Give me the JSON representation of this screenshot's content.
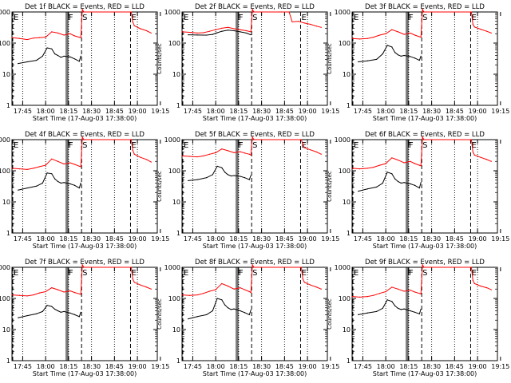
{
  "figure": {
    "panel_rows": 3,
    "panel_cols": 3,
    "colors": {
      "events": "#000000",
      "lld": "#ff0000",
      "axes": "#000000",
      "background": "#ffffff"
    }
  },
  "chart_data": {
    "type": "line",
    "yscale": "log",
    "ylim": [
      1,
      1000
    ],
    "xlim": [
      0,
      95
    ],
    "x_units": "minutes after 17:38:00",
    "y_tick_values": [
      1,
      10,
      100,
      1000
    ],
    "y_tick_labels": [
      "1",
      "10",
      "100",
      "1000"
    ],
    "x_tick_values": [
      7,
      22,
      37,
      52,
      67,
      82,
      97
    ],
    "x_tick_labels": [
      "17:45",
      "18:00",
      "18:15",
      "18:30",
      "18:45",
      "19:00",
      "19:15"
    ],
    "ylabel": "Counts/sec",
    "xlabel": "Start Time (17-Aug-03 17:38:00)",
    "minor_dotted_x": [
      7,
      22,
      37,
      52,
      67,
      82
    ],
    "markers": [
      {
        "label": "E",
        "x": 0.5,
        "style": "dashed"
      },
      {
        "label": "F",
        "x": 35.5,
        "style": "solid"
      },
      {
        "label": "F",
        "x": 36.5,
        "style": "solid"
      },
      {
        "label": "S",
        "x": 45.5,
        "style": "dashed"
      },
      {
        "label": "E",
        "x": 77.5,
        "style": "dashed"
      }
    ],
    "panels": [
      {
        "title": "Det 1f BLACK = Events, RED = LLD",
        "series": [
          {
            "name": "Events",
            "color": "#000000",
            "x": [
              4,
              10,
              16,
              20,
              23,
              26,
              28,
              30,
              32,
              34,
              38,
              41,
              44,
              45
            ],
            "y": [
              22,
              25,
              28,
              38,
              70,
              65,
              45,
              40,
              35,
              38,
              36,
              31,
              26,
              38
            ]
          },
          {
            "name": "LLD",
            "color": "#ff0000",
            "x": [
              0,
              5,
              10,
              14,
              18,
              22,
              26,
              30,
              34,
              38,
              41,
              44,
              45,
              46,
              47,
              48,
              78,
              79,
              80,
              84,
              88,
              91
            ],
            "y": [
              150,
              140,
              130,
              145,
              150,
              155,
              230,
              210,
              180,
              200,
              170,
              155,
              150,
              1200,
              1000,
              1000,
              1000,
              480,
              360,
              290,
              250,
              210
            ]
          }
        ]
      },
      {
        "title": "Det 2f BLACK = Events, RED = LLD",
        "series": [
          {
            "name": "Events",
            "color": "#000000",
            "x": [
              4,
              10,
              16,
              20,
              23,
              26,
              30,
              34,
              38,
              42,
              45
            ],
            "y": [
              185,
              182,
              180,
              190,
              215,
              240,
              260,
              250,
              230,
              210,
              185
            ]
          },
          {
            "name": "LLD",
            "color": "#ff0000",
            "x": [
              0,
              6,
              10,
              14,
              18,
              22,
              26,
              30,
              34,
              38,
              42,
              45,
              46,
              47,
              48,
              64,
              65,
              70,
              72,
              76,
              80,
              84,
              88,
              91
            ],
            "y": [
              230,
              220,
              210,
              215,
              240,
              270,
              300,
              320,
              290,
              270,
              250,
              230,
              1200,
              1000,
              1000,
              1000,
              1000,
              1000,
              480,
              500,
              440,
              400,
              350,
              320
            ]
          }
        ]
      },
      {
        "title": "Det 3f BLACK = Events, RED = LLD",
        "series": [
          {
            "name": "Events",
            "color": "#000000",
            "x": [
              4,
              10,
              16,
              20,
              23,
              26,
              28,
              30,
              32,
              34,
              38,
              41,
              44,
              45
            ],
            "y": [
              25,
              27,
              30,
              45,
              85,
              75,
              50,
              42,
              38,
              40,
              37,
              33,
              28,
              38
            ]
          },
          {
            "name": "LLD",
            "color": "#ff0000",
            "x": [
              0,
              5,
              10,
              14,
              18,
              22,
              26,
              30,
              34,
              38,
              41,
              44,
              45,
              46,
              47,
              48,
              78,
              79,
              80,
              84,
              88,
              91
            ],
            "y": [
              140,
              135,
              140,
              155,
              180,
              200,
              270,
              230,
              190,
              210,
              180,
              160,
              155,
              1200,
              1000,
              1000,
              1000,
              400,
              330,
              280,
              240,
              210
            ]
          }
        ]
      },
      {
        "title": "Det 4f BLACK = Events, RED = LLD",
        "series": [
          {
            "name": "Events",
            "color": "#000000",
            "x": [
              4,
              10,
              16,
              20,
              23,
              26,
              28,
              30,
              32,
              34,
              38,
              41,
              44,
              45
            ],
            "y": [
              24,
              28,
              32,
              40,
              85,
              80,
              55,
              45,
              40,
              42,
              38,
              34,
              28,
              40
            ]
          },
          {
            "name": "LLD",
            "color": "#ff0000",
            "x": [
              0,
              5,
              10,
              14,
              18,
              22,
              26,
              30,
              34,
              38,
              41,
              44,
              45,
              46,
              47,
              48,
              78,
              79,
              80,
              84,
              88,
              91
            ],
            "y": [
              120,
              115,
              110,
              120,
              135,
              150,
              240,
              200,
              165,
              180,
              160,
              140,
              135,
              1200,
              1000,
              1000,
              1000,
              450,
              340,
              270,
              230,
              190
            ]
          }
        ]
      },
      {
        "title": "Det 5f BLACK = Events, RED = LLD",
        "series": [
          {
            "name": "Events",
            "color": "#000000",
            "x": [
              4,
              10,
              16,
              20,
              23,
              26,
              28,
              30,
              32,
              34,
              38,
              41,
              44,
              45
            ],
            "y": [
              48,
              52,
              60,
              75,
              140,
              125,
              90,
              75,
              68,
              70,
              66,
              60,
              52,
              70
            ]
          },
          {
            "name": "LLD",
            "color": "#ff0000",
            "x": [
              0,
              5,
              10,
              14,
              18,
              22,
              26,
              30,
              34,
              38,
              41,
              44,
              45,
              46,
              47,
              48,
              78,
              79,
              80,
              84,
              88,
              91
            ],
            "y": [
              300,
              290,
              280,
              300,
              340,
              380,
              500,
              440,
              380,
              410,
              370,
              340,
              320,
              1200,
              1000,
              1000,
              1000,
              700,
              550,
              470,
              400,
              340
            ]
          }
        ]
      },
      {
        "title": "Det 6f BLACK = Events, RED = LLD",
        "series": [
          {
            "name": "Events",
            "color": "#000000",
            "x": [
              4,
              10,
              16,
              20,
              23,
              26,
              28,
              30,
              32,
              34,
              38,
              41,
              44,
              45
            ],
            "y": [
              22,
              26,
              30,
              40,
              90,
              80,
              55,
              45,
              40,
              42,
              38,
              34,
              28,
              42
            ]
          },
          {
            "name": "LLD",
            "color": "#ff0000",
            "x": [
              0,
              5,
              10,
              14,
              18,
              22,
              26,
              30,
              34,
              38,
              41,
              44,
              45,
              46,
              47,
              48,
              78,
              79,
              80,
              84,
              88,
              91
            ],
            "y": [
              120,
              115,
              120,
              130,
              150,
              170,
              260,
              220,
              180,
              200,
              170,
              150,
              145,
              1200,
              1000,
              1000,
              1000,
              400,
              320,
              270,
              230,
              200
            ]
          }
        ]
      },
      {
        "title": "Det 7f BLACK = Events, RED = LLD",
        "series": [
          {
            "name": "Events",
            "color": "#000000",
            "x": [
              4,
              10,
              16,
              20,
              23,
              26,
              28,
              30,
              32,
              34,
              38,
              41,
              44,
              45
            ],
            "y": [
              24,
              28,
              32,
              38,
              60,
              55,
              45,
              40,
              36,
              38,
              34,
              30,
              26,
              36
            ]
          },
          {
            "name": "LLD",
            "color": "#ff0000",
            "x": [
              0,
              5,
              10,
              14,
              18,
              22,
              26,
              30,
              34,
              38,
              41,
              44,
              45,
              46,
              47,
              48,
              78,
              79,
              80,
              84,
              88,
              91
            ],
            "y": [
              130,
              125,
              120,
              130,
              150,
              165,
              220,
              190,
              160,
              175,
              155,
              140,
              135,
              1200,
              1000,
              1000,
              1000,
              420,
              330,
              270,
              230,
              200
            ]
          }
        ]
      },
      {
        "title": "Det 8f BLACK = Events, RED = LLD",
        "series": [
          {
            "name": "Events",
            "color": "#000000",
            "x": [
              4,
              10,
              16,
              20,
              23,
              26,
              28,
              30,
              32,
              34,
              38,
              41,
              44,
              45
            ],
            "y": [
              22,
              26,
              30,
              40,
              100,
              90,
              62,
              50,
              44,
              46,
              40,
              35,
              30,
              42
            ]
          },
          {
            "name": "LLD",
            "color": "#ff0000",
            "x": [
              0,
              5,
              10,
              14,
              18,
              22,
              26,
              30,
              34,
              38,
              41,
              44,
              45,
              46,
              47,
              48,
              78,
              79,
              80,
              84,
              88,
              91
            ],
            "y": [
              130,
              125,
              130,
              145,
              170,
              190,
              300,
              250,
              200,
              220,
              190,
              165,
              155,
              1200,
              1000,
              1000,
              1000,
              420,
              330,
              270,
              230,
              200
            ]
          }
        ]
      },
      {
        "title": "Det 9f BLACK = Events, RED = LLD",
        "series": [
          {
            "name": "Events",
            "color": "#000000",
            "x": [
              4,
              10,
              16,
              20,
              23,
              26,
              28,
              30,
              32,
              34,
              38,
              41,
              44,
              45
            ],
            "y": [
              30,
              34,
              38,
              48,
              90,
              80,
              58,
              48,
              44,
              46,
              40,
              36,
              32,
              45
            ]
          },
          {
            "name": "LLD",
            "color": "#ff0000",
            "x": [
              0,
              5,
              10,
              14,
              18,
              22,
              26,
              30,
              34,
              38,
              41,
              44,
              45,
              46,
              47,
              48,
              78,
              79,
              80,
              84,
              88,
              91
            ],
            "y": [
              115,
              110,
              115,
              125,
              145,
              165,
              230,
              200,
              170,
              185,
              160,
              145,
              140,
              1200,
              1000,
              1000,
              1000,
              380,
              300,
              250,
              220,
              190
            ]
          }
        ]
      }
    ]
  }
}
